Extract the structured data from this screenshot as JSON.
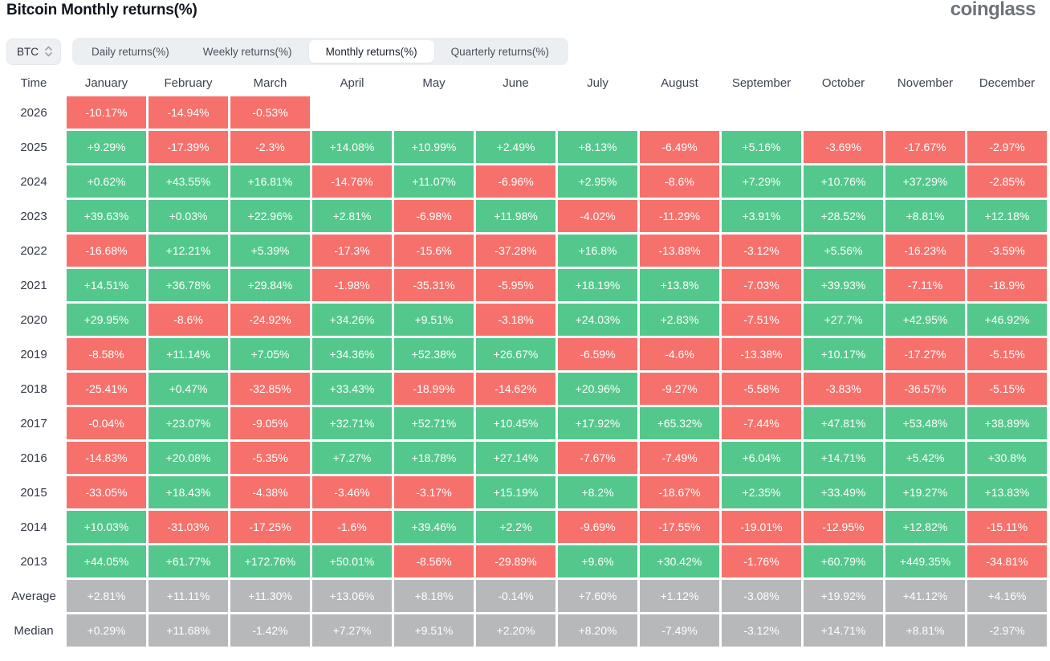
{
  "page": {
    "title": "Bitcoin Monthly returns(%)",
    "brand": "coinglass"
  },
  "controls": {
    "symbol_selector": {
      "value": "BTC",
      "icon": "up-down-chevron-icon"
    },
    "tabs": [
      {
        "id": "daily",
        "label": "Daily returns(%)",
        "active": false
      },
      {
        "id": "weekly",
        "label": "Weekly returns(%)",
        "active": false
      },
      {
        "id": "monthly",
        "label": "Monthly returns(%)",
        "active": true
      },
      {
        "id": "quarterly",
        "label": "Quarterly returns(%)",
        "active": false
      }
    ]
  },
  "colors": {
    "positive": "#54C88C",
    "negative": "#F7716C",
    "neutral": "#B6B8BA",
    "cell_text": "#FFFFFF"
  },
  "chart_data": {
    "type": "heatmap",
    "title": "Bitcoin Monthly returns(%)",
    "time_label": "Time",
    "categories": [
      "January",
      "February",
      "March",
      "April",
      "May",
      "June",
      "July",
      "August",
      "September",
      "October",
      "November",
      "December"
    ],
    "legend": {
      "positive": "green",
      "negative": "red",
      "summary": "gray"
    },
    "rows": [
      {
        "label": "2026",
        "type": "year",
        "values": [
          "-10.17%",
          "-14.94%",
          "-0.53%",
          "",
          "",
          "",
          "",
          "",
          "",
          "",
          "",
          ""
        ]
      },
      {
        "label": "2025",
        "type": "year",
        "values": [
          "+9.29%",
          "-17.39%",
          "-2.3%",
          "+14.08%",
          "+10.99%",
          "+2.49%",
          "+8.13%",
          "-6.49%",
          "+5.16%",
          "-3.69%",
          "-17.67%",
          "-2.97%"
        ]
      },
      {
        "label": "2024",
        "type": "year",
        "values": [
          "+0.62%",
          "+43.55%",
          "+16.81%",
          "-14.76%",
          "+11.07%",
          "-6.96%",
          "+2.95%",
          "-8.6%",
          "+7.29%",
          "+10.76%",
          "+37.29%",
          "-2.85%"
        ]
      },
      {
        "label": "2023",
        "type": "year",
        "values": [
          "+39.63%",
          "+0.03%",
          "+22.96%",
          "+2.81%",
          "-6.98%",
          "+11.98%",
          "-4.02%",
          "-11.29%",
          "+3.91%",
          "+28.52%",
          "+8.81%",
          "+12.18%"
        ]
      },
      {
        "label": "2022",
        "type": "year",
        "values": [
          "-16.68%",
          "+12.21%",
          "+5.39%",
          "-17.3%",
          "-15.6%",
          "-37.28%",
          "+16.8%",
          "-13.88%",
          "-3.12%",
          "+5.56%",
          "-16.23%",
          "-3.59%"
        ]
      },
      {
        "label": "2021",
        "type": "year",
        "values": [
          "+14.51%",
          "+36.78%",
          "+29.84%",
          "-1.98%",
          "-35.31%",
          "-5.95%",
          "+18.19%",
          "+13.8%",
          "-7.03%",
          "+39.93%",
          "-7.11%",
          "-18.9%"
        ]
      },
      {
        "label": "2020",
        "type": "year",
        "values": [
          "+29.95%",
          "-8.6%",
          "-24.92%",
          "+34.26%",
          "+9.51%",
          "-3.18%",
          "+24.03%",
          "+2.83%",
          "-7.51%",
          "+27.7%",
          "+42.95%",
          "+46.92%"
        ]
      },
      {
        "label": "2019",
        "type": "year",
        "values": [
          "-8.58%",
          "+11.14%",
          "+7.05%",
          "+34.36%",
          "+52.38%",
          "+26.67%",
          "-6.59%",
          "-4.6%",
          "-13.38%",
          "+10.17%",
          "-17.27%",
          "-5.15%"
        ]
      },
      {
        "label": "2018",
        "type": "year",
        "values": [
          "-25.41%",
          "+0.47%",
          "-32.85%",
          "+33.43%",
          "-18.99%",
          "-14.62%",
          "+20.96%",
          "-9.27%",
          "-5.58%",
          "-3.83%",
          "-36.57%",
          "-5.15%"
        ]
      },
      {
        "label": "2017",
        "type": "year",
        "values": [
          "-0.04%",
          "+23.07%",
          "-9.05%",
          "+32.71%",
          "+52.71%",
          "+10.45%",
          "+17.92%",
          "+65.32%",
          "-7.44%",
          "+47.81%",
          "+53.48%",
          "+38.89%"
        ]
      },
      {
        "label": "2016",
        "type": "year",
        "values": [
          "-14.83%",
          "+20.08%",
          "-5.35%",
          "+7.27%",
          "+18.78%",
          "+27.14%",
          "-7.67%",
          "-7.49%",
          "+6.04%",
          "+14.71%",
          "+5.42%",
          "+30.8%"
        ]
      },
      {
        "label": "2015",
        "type": "year",
        "values": [
          "-33.05%",
          "+18.43%",
          "-4.38%",
          "-3.46%",
          "-3.17%",
          "+15.19%",
          "+8.2%",
          "-18.67%",
          "+2.35%",
          "+33.49%",
          "+19.27%",
          "+13.83%"
        ]
      },
      {
        "label": "2014",
        "type": "year",
        "values": [
          "+10.03%",
          "-31.03%",
          "-17.25%",
          "-1.6%",
          "+39.46%",
          "+2.2%",
          "-9.69%",
          "-17.55%",
          "-19.01%",
          "-12.95%",
          "+12.82%",
          "-15.11%"
        ]
      },
      {
        "label": "2013",
        "type": "year",
        "values": [
          "+44.05%",
          "+61.77%",
          "+172.76%",
          "+50.01%",
          "-8.56%",
          "-29.89%",
          "+9.6%",
          "+30.42%",
          "-1.76%",
          "+60.79%",
          "+449.35%",
          "-34.81%"
        ]
      },
      {
        "label": "Average",
        "type": "summary",
        "values": [
          "+2.81%",
          "+11.11%",
          "+11.30%",
          "+13.06%",
          "+8.18%",
          "-0.14%",
          "+7.60%",
          "+1.12%",
          "-3.08%",
          "+19.92%",
          "+41.12%",
          "+4.16%"
        ]
      },
      {
        "label": "Median",
        "type": "summary",
        "values": [
          "+0.29%",
          "+11.68%",
          "-1.42%",
          "+7.27%",
          "+9.51%",
          "+2.20%",
          "+8.20%",
          "-7.49%",
          "-3.12%",
          "+14.71%",
          "+8.81%",
          "-2.97%"
        ]
      }
    ]
  }
}
